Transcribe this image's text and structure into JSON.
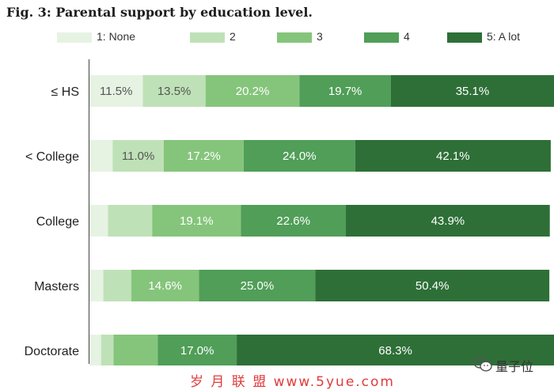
{
  "figure_title": "Fig. 3: Parental support by education level.",
  "watermark": "岁 月 联 盟   www.5yue.com",
  "brand": {
    "text": "量子位",
    "icon": "wechat-chat-icon"
  },
  "colors": [
    "#e6f3e3",
    "#bfe1b7",
    "#85c57b",
    "#509e58",
    "#2e6f37"
  ],
  "chart_data": {
    "type": "bar",
    "orientation": "horizontal",
    "stacked": true,
    "percent": true,
    "categories": [
      "≤ HS",
      "< College",
      "College",
      "Masters",
      "Doctorate"
    ],
    "legend_position": "top",
    "series": [
      {
        "name": "1: None",
        "values": [
          11.5,
          5.0,
          4.0,
          3.0,
          2.5
        ],
        "labels": [
          "11.5%",
          "",
          "",
          "",
          ""
        ]
      },
      {
        "name": "2",
        "values": [
          13.5,
          11.0,
          9.5,
          6.0,
          2.7
        ],
        "labels": [
          "13.5%",
          "11.0%",
          "",
          "",
          ""
        ]
      },
      {
        "name": "3",
        "values": [
          20.2,
          17.2,
          19.1,
          14.6,
          9.5
        ],
        "labels": [
          "20.2%",
          "17.2%",
          "19.1%",
          "14.6%",
          ""
        ]
      },
      {
        "name": "4",
        "values": [
          19.7,
          24.0,
          22.6,
          25.0,
          17.0
        ],
        "labels": [
          "19.7%",
          "24.0%",
          "22.6%",
          "25.0%",
          "17.0%"
        ]
      },
      {
        "name": "5: A lot",
        "values": [
          35.1,
          42.1,
          43.9,
          50.4,
          68.3
        ],
        "labels": [
          "35.1%",
          "42.1%",
          "43.9%",
          "50.4%",
          "68.3%"
        ]
      }
    ]
  }
}
